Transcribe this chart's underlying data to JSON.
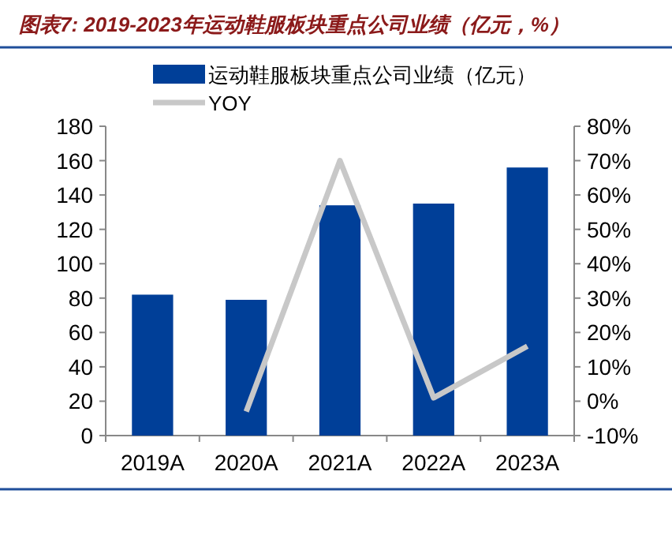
{
  "chart_data": {
    "type": "bar",
    "title": "图表7: 2019-2023年运动鞋服板块重点公司业绩（亿元，%）",
    "categories": [
      "2019A",
      "2020A",
      "2021A",
      "2022A",
      "2023A"
    ],
    "series": [
      {
        "name": "运动鞋服板块重点公司业绩（亿元）",
        "color": "#003f98",
        "values": [
          82,
          79,
          134,
          135,
          156
        ]
      },
      {
        "name": "YOY",
        "type": "line",
        "axis": "y2",
        "color": "#c8c8c8",
        "values": [
          null,
          -3,
          70,
          1,
          16
        ]
      }
    ],
    "ylim": [
      0,
      180
    ],
    "yticks": [
      0,
      20,
      40,
      60,
      80,
      100,
      120,
      140,
      160,
      180
    ],
    "y2lim": [
      -10,
      80
    ],
    "y2ticks": [
      {
        "value": -10,
        "label": "-10%"
      },
      {
        "value": 0,
        "label": "0%"
      },
      {
        "value": 10,
        "label": "10%"
      },
      {
        "value": 20,
        "label": "20%"
      },
      {
        "value": 30,
        "label": "30%"
      },
      {
        "value": 40,
        "label": "40%"
      },
      {
        "value": 50,
        "label": "50%"
      },
      {
        "value": 60,
        "label": "60%"
      },
      {
        "value": 70,
        "label": "70%"
      },
      {
        "value": 80,
        "label": "80%"
      }
    ],
    "legend": "top",
    "grid": false
  }
}
